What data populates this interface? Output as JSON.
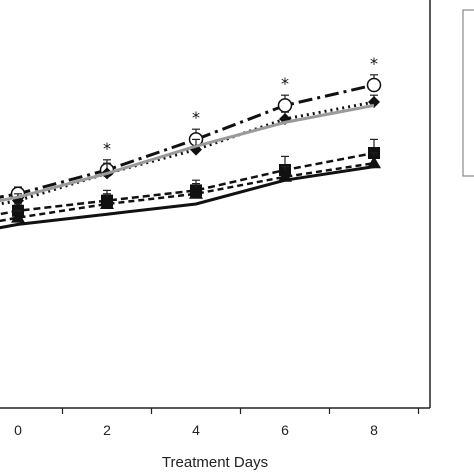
{
  "chart_data": {
    "type": "line",
    "xlabel": "Treatment Days",
    "ylabel": "",
    "x": [
      0,
      2,
      4,
      6,
      8
    ],
    "x_tick_labels": [
      "0",
      "2",
      "4",
      "6",
      "8"
    ],
    "xlim": [
      -1,
      9.5
    ],
    "ylim": [
      0,
      12
    ],
    "grid": false,
    "legend": "top-right, partially visible box (entries cut off)",
    "series": [
      {
        "style": "dash-dot, open circle markers",
        "color": "#111111",
        "marker": "open-circle",
        "values": [
          6.3,
          7.0,
          7.9,
          8.9,
          9.5
        ],
        "errors": [
          0.2,
          0.3,
          0.3,
          0.3,
          0.3
        ]
      },
      {
        "style": "dotted, filled diamond markers",
        "color": "#111111",
        "marker": "diamond",
        "values": [
          6.1,
          6.9,
          7.6,
          8.5,
          9.0
        ],
        "errors": [
          0.2,
          0.3,
          0.3,
          0.2,
          0.2
        ]
      },
      {
        "style": "solid gray line",
        "color": "#9a9a9a",
        "marker": "none",
        "values": [
          6.2,
          6.9,
          7.7,
          8.4,
          8.9
        ],
        "errors": [
          0,
          0,
          0,
          0,
          0
        ]
      },
      {
        "style": "dashed, filled square markers",
        "color": "#111111",
        "marker": "square",
        "values": [
          5.8,
          6.1,
          6.4,
          7.0,
          7.5
        ],
        "errors": [
          0.2,
          0.3,
          0.3,
          0.4,
          0.4
        ]
      },
      {
        "style": "dashed, filled triangle markers",
        "color": "#111111",
        "marker": "triangle",
        "values": [
          5.6,
          6.0,
          6.3,
          6.8,
          7.2
        ],
        "errors": [
          0.2,
          0.3,
          0.3,
          0.3,
          0.3
        ]
      },
      {
        "style": "solid black line",
        "color": "#111111",
        "marker": "none",
        "values": [
          5.4,
          5.7,
          6.0,
          6.7,
          7.1
        ],
        "errors": [
          0,
          0,
          0,
          0,
          0
        ]
      }
    ],
    "significance_marks": [
      {
        "x": 2,
        "label": "*"
      },
      {
        "x": 4,
        "label": "*"
      },
      {
        "x": 6,
        "label": "*"
      },
      {
        "x": 8,
        "label": "*"
      }
    ]
  }
}
